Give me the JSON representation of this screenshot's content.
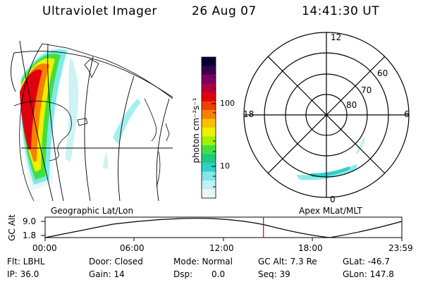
{
  "header": {
    "instrument": "Ultraviolet Imager",
    "date": "26 Aug 07",
    "time": "14:41:30 UT"
  },
  "colorbar": {
    "unit_label": "photon cm⁻²s⁻¹",
    "ticks": [
      "100",
      "10"
    ],
    "colors": [
      "#000030",
      "#3a0050",
      "#800060",
      "#b00040",
      "#e00010",
      "#f04000",
      "#f88000",
      "#f8c000",
      "#f0f000",
      "#a0f000",
      "#40e040",
      "#20c880",
      "#30d0c8",
      "#80e8e8",
      "#c0f0f0",
      "#e8f8f8"
    ]
  },
  "polar_plot": {
    "mlt_labels": {
      "top": "12",
      "left": "18",
      "right": "6",
      "bottom": "0"
    },
    "lat_labels": [
      "60",
      "70",
      "80"
    ],
    "coord_label": "Apex MLat/MLT"
  },
  "geo_map": {
    "coord_label": "Geographic Lat/Lon"
  },
  "altitude_plot": {
    "axis_label": "GC Alt",
    "y_ticks": [
      "9.0",
      "1.8"
    ],
    "x_ticks": [
      "00:00",
      "06:00",
      "12:00",
      "18:00",
      "23:59"
    ],
    "current_time_hours": 14.69,
    "marker_color": "#d00000"
  },
  "status": {
    "filter": "Flt: LBHL",
    "ip": "IP: 36.0",
    "door": "Door: Closed",
    "gain": "Gain: 14",
    "mode": "Mode: Normal",
    "dsp_label": "Dsp:",
    "dsp_value": "0.0",
    "gc_alt": "GC Alt: 7.3 Re",
    "seq": "Seq: 39",
    "glat": "GLat: -46.7",
    "glon": "GLon: 147.8"
  }
}
